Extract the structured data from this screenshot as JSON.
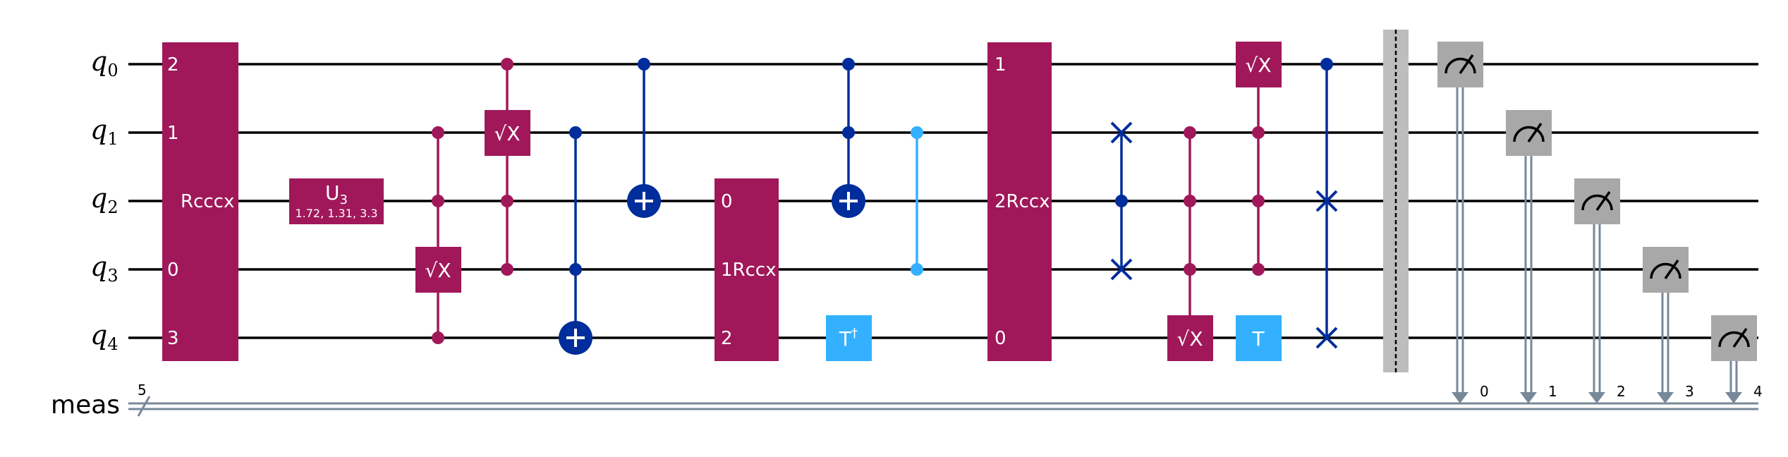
{
  "qubits": [
    {
      "name": "q",
      "index": "0"
    },
    {
      "name": "q",
      "index": "1"
    },
    {
      "name": "q",
      "index": "2"
    },
    {
      "name": "q",
      "index": "3"
    },
    {
      "name": "q",
      "index": "4"
    }
  ],
  "classical_register": {
    "name": "meas",
    "size": "5"
  },
  "colors": {
    "multi_qubit_gate": "#a0185a",
    "controlled_x": "#002d9c",
    "t_gate": "#33b1ff",
    "measure": "#a8a8a8",
    "barrier": "#bdbdbd",
    "classical_wire": "#778899"
  },
  "gates": {
    "rcccx": {
      "label": "Rcccx",
      "pins": [
        "2",
        "1",
        "0",
        "3"
      ]
    },
    "u3": {
      "label": "U",
      "sub": "3",
      "params": "1.72, 1.31, 3.3"
    },
    "sx_label": "√X",
    "rccx1": {
      "label": "1Rccx",
      "pins": [
        "0",
        "2"
      ]
    },
    "tdg": {
      "label": "T",
      "sup": "†"
    },
    "rccx2": {
      "label": "2Rccx",
      "pins": [
        "1",
        "0"
      ]
    },
    "t": {
      "label": "T"
    }
  },
  "measure_bits": [
    "0",
    "1",
    "2",
    "3",
    "4"
  ]
}
